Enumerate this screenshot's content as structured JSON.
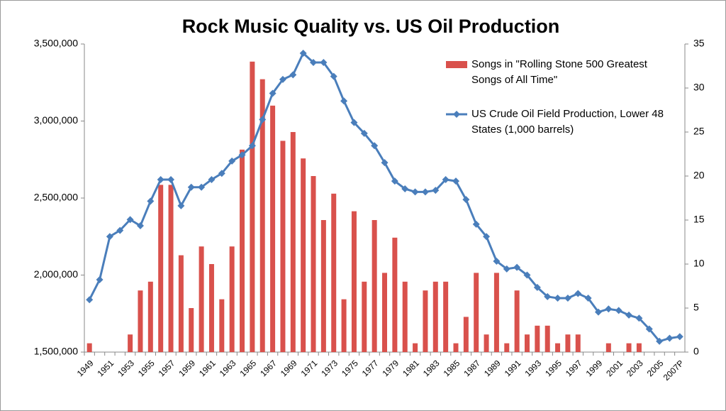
{
  "chart_data": {
    "type": "combo",
    "title": "Rock Music Quality vs. US Oil Production",
    "categories": [
      "1949",
      null,
      "1951",
      null,
      "1953",
      null,
      "1955",
      null,
      "1957",
      null,
      "1959",
      null,
      "1961",
      null,
      "1963",
      null,
      "1965",
      null,
      "1967",
      null,
      "1969",
      null,
      "1971",
      null,
      "1973",
      null,
      "1975",
      null,
      "1977",
      null,
      "1979",
      null,
      "1981",
      null,
      "1983",
      null,
      "1985",
      null,
      "1987",
      null,
      "1989",
      null,
      "1991",
      null,
      "1993",
      null,
      "1995",
      null,
      "1997",
      null,
      "1999",
      null,
      "2001",
      null,
      "2003",
      null,
      "2005",
      null,
      "2007P"
    ],
    "series": [
      {
        "name": "Songs in \"Rolling Stone 500 Greatest Songs of All Time\"",
        "type": "bar",
        "axis": "y2",
        "color": "#d9514c",
        "values": [
          1,
          0,
          0,
          0,
          2,
          7,
          8,
          19,
          19,
          11,
          5,
          12,
          10,
          6,
          12,
          23,
          33,
          31,
          28,
          24,
          25,
          22,
          20,
          15,
          18,
          6,
          16,
          8,
          15,
          9,
          13,
          8,
          1,
          7,
          8,
          8,
          1,
          4,
          9,
          2,
          9,
          1,
          7,
          2,
          3,
          3,
          1,
          2,
          2,
          0,
          0,
          1,
          0,
          1,
          1,
          0,
          0,
          0,
          0
        ]
      },
      {
        "name": "US Crude Oil Field Production, Lower 48 States (1,000 barrels)",
        "type": "line",
        "axis": "y",
        "color": "#4a7ebb",
        "values": [
          1840000,
          1970000,
          2250000,
          2290000,
          2360000,
          2320000,
          2480000,
          2620000,
          2620000,
          2450000,
          2570000,
          2570000,
          2620000,
          2660000,
          2740000,
          2780000,
          2840000,
          3010000,
          3180000,
          3270000,
          3300000,
          3440000,
          3380000,
          3380000,
          3290000,
          3130000,
          2990000,
          2920000,
          2840000,
          2730000,
          2610000,
          2560000,
          2540000,
          2540000,
          2550000,
          2620000,
          2610000,
          2490000,
          2330000,
          2250000,
          2090000,
          2040000,
          2050000,
          2000000,
          1920000,
          1860000,
          1850000,
          1850000,
          1880000,
          1850000,
          1760000,
          1780000,
          1770000,
          1740000,
          1720000,
          1650000,
          1570000,
          1590000,
          1600000
        ]
      }
    ],
    "ylim": [
      1500000,
      3500000
    ],
    "yticks": [
      {
        "value": 1500000,
        "label": "1,500,000"
      },
      {
        "value": 2000000,
        "label": "2,000,000"
      },
      {
        "value": 2500000,
        "label": "2,500,000"
      },
      {
        "value": 3000000,
        "label": "3,000,000"
      },
      {
        "value": 3500000,
        "label": "3,500,000"
      }
    ],
    "y2lim": [
      0,
      35
    ],
    "y2ticks": [
      0,
      5,
      10,
      15,
      20,
      25,
      30,
      35
    ],
    "legend": "upper right"
  }
}
